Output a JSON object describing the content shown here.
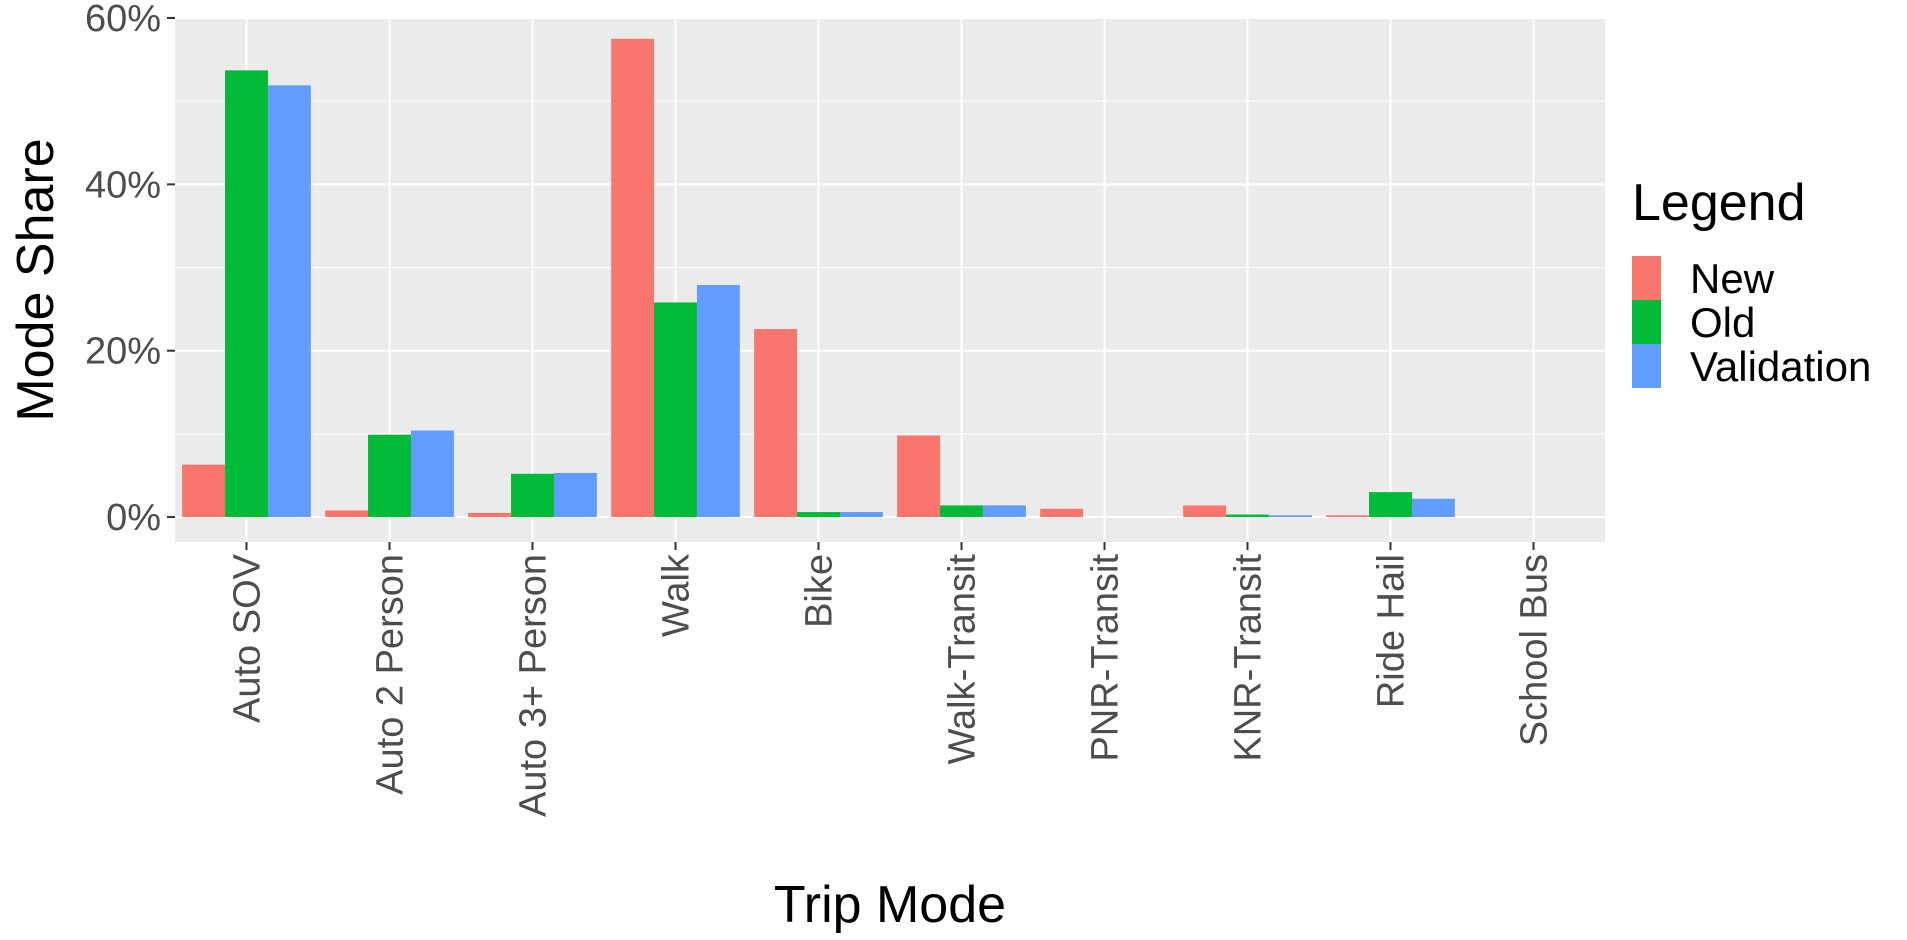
{
  "chart_data": {
    "type": "bar",
    "title": "",
    "xlabel": "Trip Mode",
    "ylabel": "Mode Share",
    "ylim": [
      -3,
      60
    ],
    "yticks": [
      0,
      20,
      40,
      60
    ],
    "ytick_labels": [
      "0%",
      "20%",
      "40%",
      "60%"
    ],
    "grid": true,
    "legend_title": "Legend",
    "legend_position": "right",
    "categories": [
      "Auto SOV",
      "Auto 2 Person",
      "Auto 3+ Person",
      "Walk",
      "Bike",
      "Walk-Transit",
      "PNR-Transit",
      "KNR-Transit",
      "Ride Hail",
      "School Bus"
    ],
    "series": [
      {
        "name": "New",
        "color": "#F8766D",
        "values": [
          6.3,
          0.8,
          0.5,
          57.5,
          22.6,
          9.8,
          1.0,
          1.4,
          0.2,
          0.0
        ]
      },
      {
        "name": "Old",
        "color": "#00BA38",
        "values": [
          53.7,
          9.9,
          5.2,
          25.8,
          0.6,
          1.4,
          0.0,
          0.3,
          3.0,
          0.0
        ]
      },
      {
        "name": "Validation",
        "color": "#619CFF",
        "values": [
          51.9,
          10.4,
          5.3,
          27.9,
          0.6,
          1.4,
          0.0,
          0.2,
          2.2,
          0.0
        ]
      }
    ]
  }
}
